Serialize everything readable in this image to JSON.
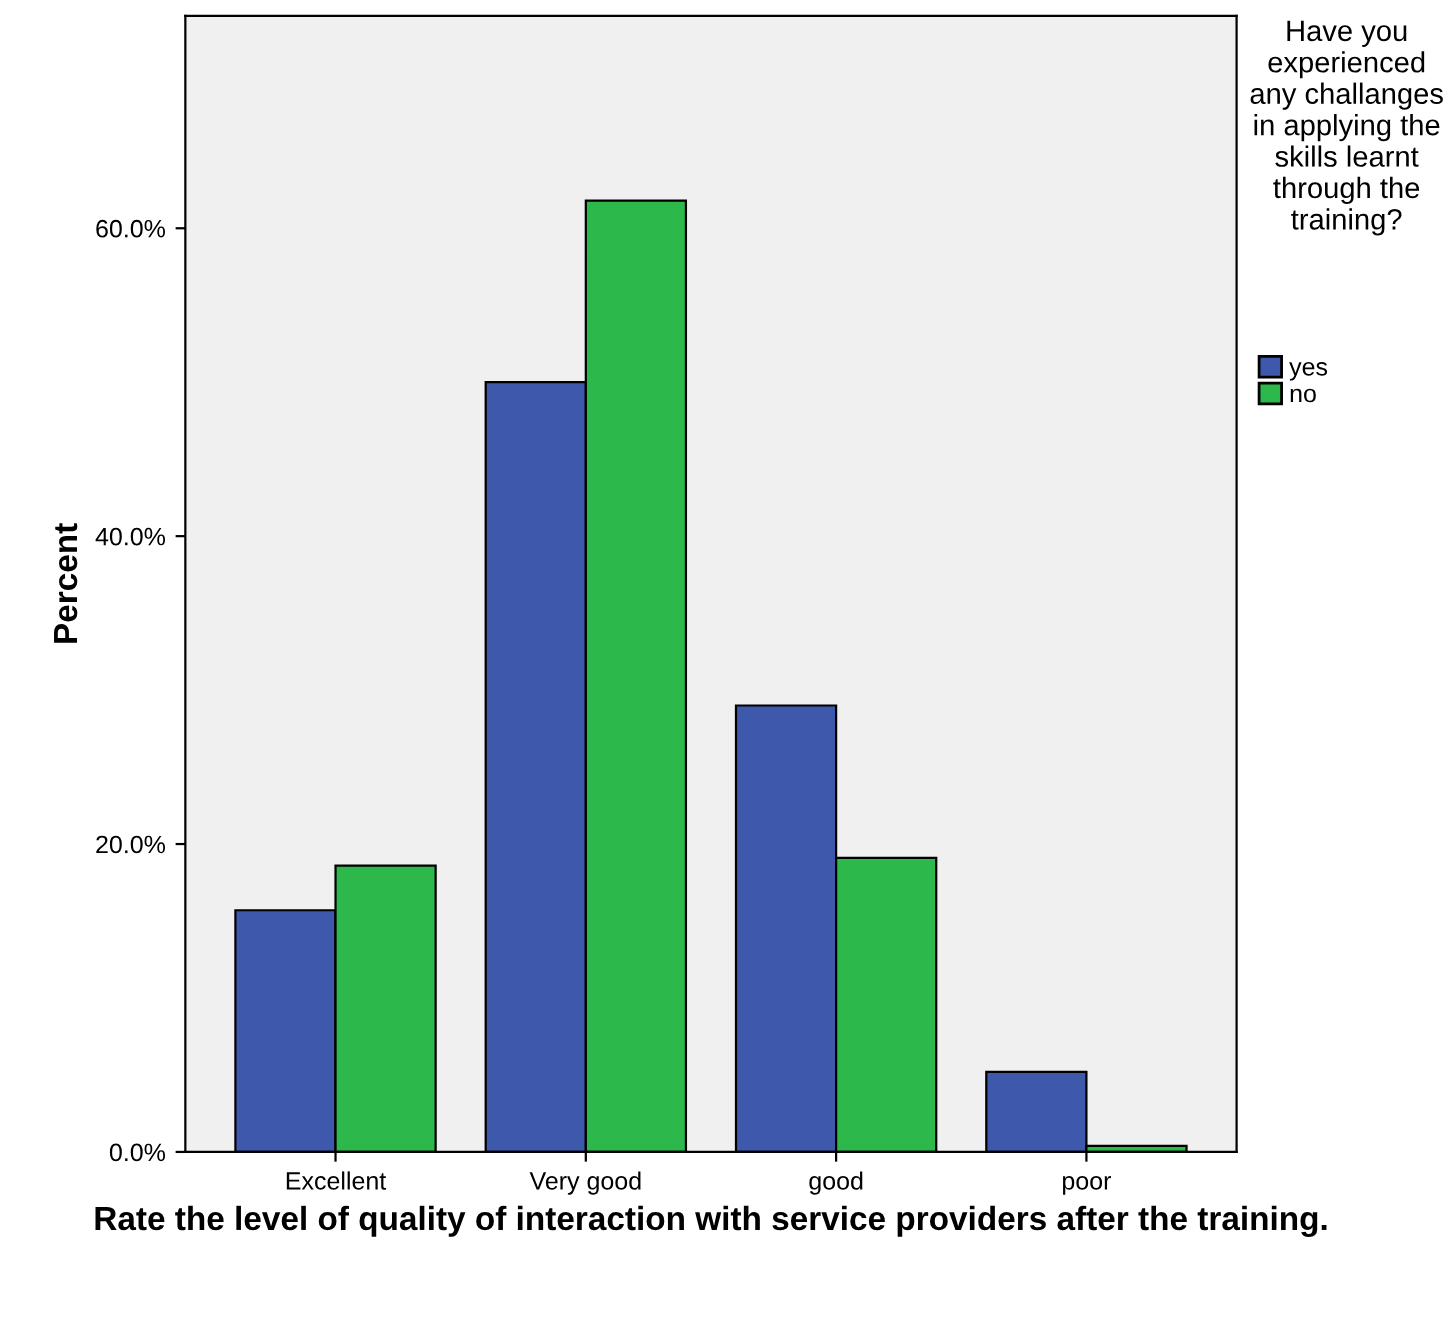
{
  "chart_data": {
    "type": "bar",
    "xlabel": "Rate the level of quality of interaction with service providers after the training.",
    "ylabel": "Percent",
    "legend_title": "Have you experienced any challanges in applying the skills learnt through the training?",
    "categories": [
      "Excellent",
      "Very good",
      "good",
      "poor"
    ],
    "series": [
      {
        "name": "yes",
        "color": "#3e58ac",
        "values": [
          15.7,
          50.0,
          29.0,
          5.2
        ]
      },
      {
        "name": "no",
        "color": "#2db84b",
        "values": [
          18.6,
          61.8,
          19.1,
          0.4
        ]
      }
    ],
    "ylim": [
      0,
      73.8
    ],
    "yticks": [
      {
        "value": 0,
        "label": "0.0%"
      },
      {
        "value": 20,
        "label": "20.0%"
      },
      {
        "value": 40,
        "label": "40.0%"
      },
      {
        "value": 60,
        "label": "60.0%"
      }
    ],
    "grid": false,
    "legend": "right"
  }
}
